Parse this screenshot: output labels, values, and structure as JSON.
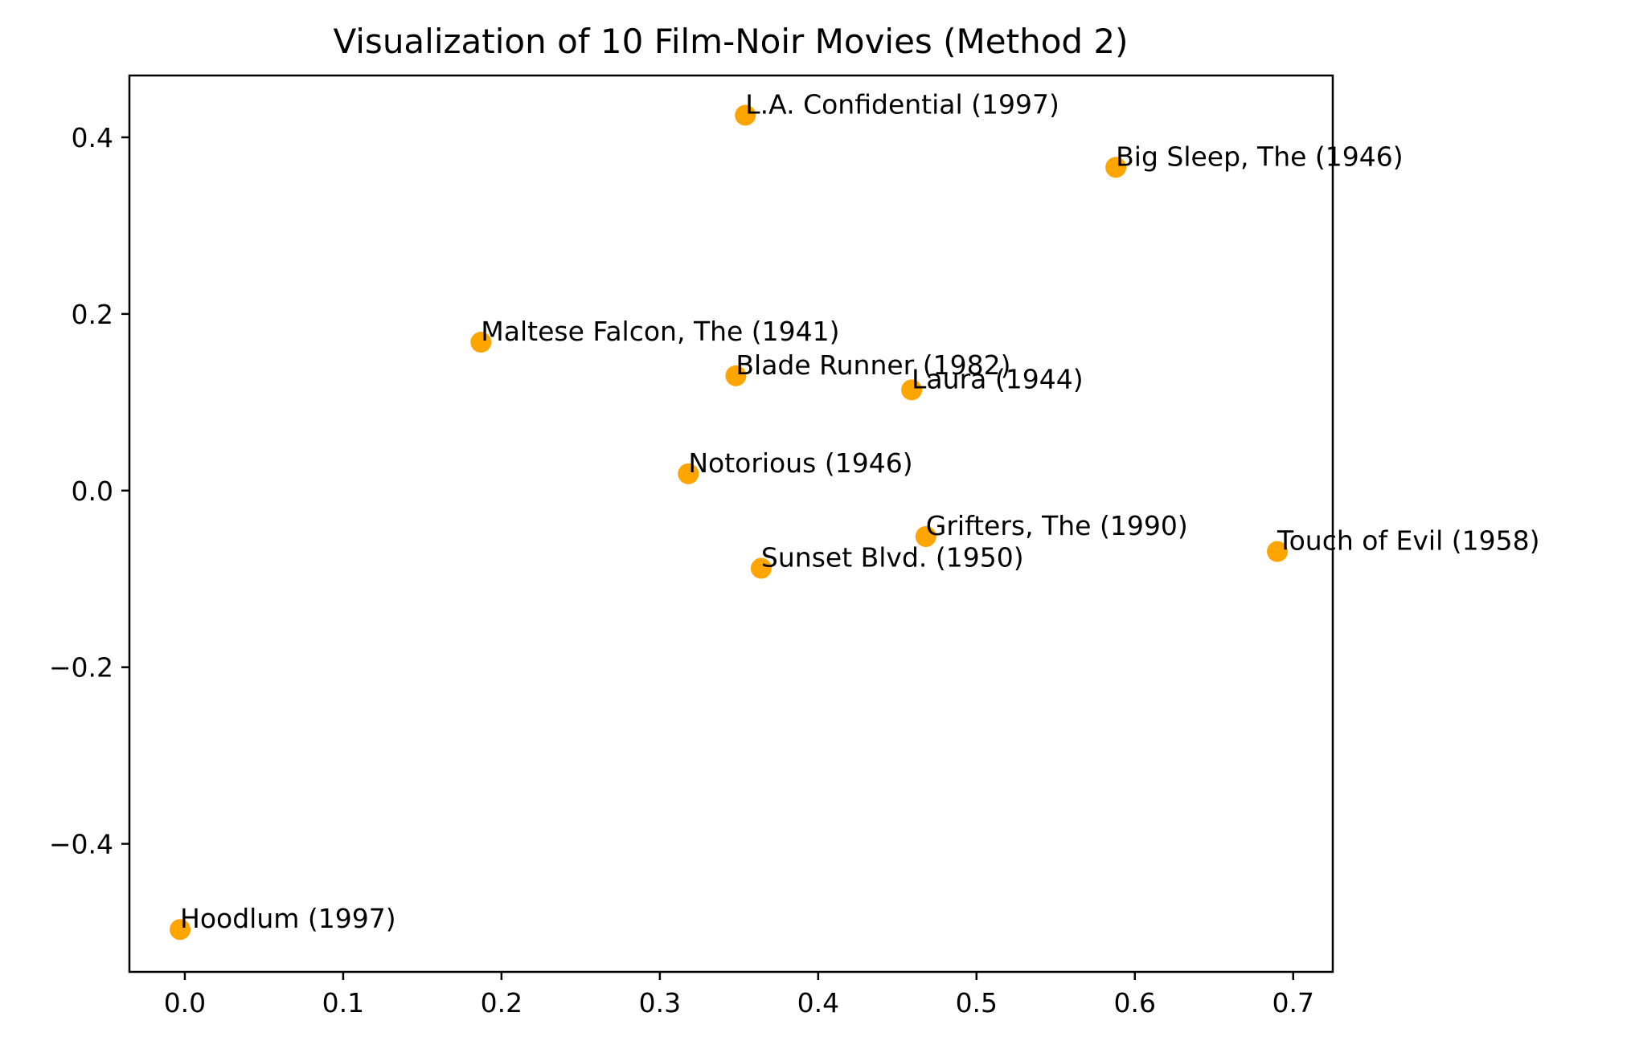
{
  "chart_data": {
    "type": "scatter",
    "title": "Visualization of 10 Film-Noir Movies (Method 2)",
    "xlabel": "",
    "ylabel": "",
    "xlim": [
      -0.035,
      0.725
    ],
    "ylim": [
      -0.545,
      0.47
    ],
    "xticks": [
      0.0,
      0.1,
      0.2,
      0.3,
      0.4,
      0.5,
      0.6,
      0.7
    ],
    "xtick_labels": [
      "0.0",
      "0.1",
      "0.2",
      "0.3",
      "0.4",
      "0.5",
      "0.6",
      "0.7"
    ],
    "yticks": [
      -0.4,
      -0.2,
      0.0,
      0.2,
      0.4
    ],
    "ytick_labels": [
      "−0.4",
      "−0.2",
      "0.0",
      "0.2",
      "0.4"
    ],
    "grid": false,
    "marker_color": "#ffa500",
    "points": [
      {
        "label": "L.A. Confidential (1997)",
        "x": 0.354,
        "y": 0.425
      },
      {
        "label": "Big Sleep, The (1946)",
        "x": 0.588,
        "y": 0.366
      },
      {
        "label": "Maltese Falcon, The (1941)",
        "x": 0.187,
        "y": 0.168
      },
      {
        "label": "Blade Runner (1982)",
        "x": 0.348,
        "y": 0.13
      },
      {
        "label": "Laura (1944)",
        "x": 0.459,
        "y": 0.114
      },
      {
        "label": "Notorious (1946)",
        "x": 0.318,
        "y": 0.019
      },
      {
        "label": "Grifters, The (1990)",
        "x": 0.468,
        "y": -0.052
      },
      {
        "label": "Touch of Evil (1958)",
        "x": 0.69,
        "y": -0.069
      },
      {
        "label": "Sunset Blvd. (1950)",
        "x": 0.364,
        "y": -0.088
      },
      {
        "label": "Hoodlum (1997)",
        "x": -0.003,
        "y": -0.497
      }
    ]
  }
}
